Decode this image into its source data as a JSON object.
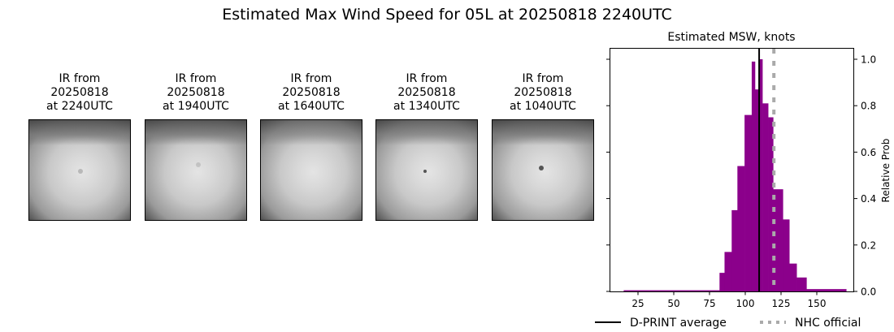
{
  "title": "Estimated Max Wind Speed for 05L at 20250818 2240UTC",
  "panels": [
    {
      "label": "IR from\n20250818\nat 2240UTC"
    },
    {
      "label": "IR from\n20250818\nat 1940UTC"
    },
    {
      "label": "IR from\n20250818\nat 1640UTC"
    },
    {
      "label": "IR from\n20250818\nat 1340UTC"
    },
    {
      "label": "IR from\n20250818\nat 1040UTC"
    }
  ],
  "chart_data": {
    "type": "bar",
    "title": "Estimated MSW, knots",
    "xlabel": "",
    "ylabel": "Relative Prob",
    "xlim": [
      5,
      175
    ],
    "ylim": [
      0,
      1.05
    ],
    "xticks": [
      25,
      50,
      75,
      100,
      125,
      150
    ],
    "yticks": [
      "0.0",
      "0.2",
      "0.4",
      "0.6",
      "0.8",
      "1.0"
    ],
    "bar_color": "#8b008b",
    "bins": [
      {
        "x0": 15,
        "x1": 82,
        "value": 0.005
      },
      {
        "x0": 82,
        "x1": 85.5,
        "value": 0.08
      },
      {
        "x0": 85.5,
        "x1": 90.5,
        "value": 0.17
      },
      {
        "x0": 90.5,
        "x1": 94.5,
        "value": 0.35
      },
      {
        "x0": 94.5,
        "x1": 99.5,
        "value": 0.54
      },
      {
        "x0": 99.5,
        "x1": 104.5,
        "value": 0.76
      },
      {
        "x0": 104.5,
        "x1": 106.8,
        "value": 0.99
      },
      {
        "x0": 106.8,
        "x1": 109.7,
        "value": 0.87
      },
      {
        "x0": 109.7,
        "x1": 112,
        "value": 1.0
      },
      {
        "x0": 112,
        "x1": 116,
        "value": 0.81
      },
      {
        "x0": 116,
        "x1": 119.5,
        "value": 0.75
      },
      {
        "x0": 119.5,
        "x1": 126.3,
        "value": 0.44
      },
      {
        "x0": 126.3,
        "x1": 130.8,
        "value": 0.31
      },
      {
        "x0": 130.8,
        "x1": 135.9,
        "value": 0.12
      },
      {
        "x0": 135.9,
        "x1": 142.8,
        "value": 0.06
      },
      {
        "x0": 142.8,
        "x1": 170.6,
        "value": 0.01
      }
    ],
    "lines": [
      {
        "name": "D-PRINT average",
        "x": 109.7,
        "color": "#000000",
        "style": "solid"
      },
      {
        "name": "NHC official",
        "x": 120,
        "color": "#aaaaaa",
        "style": "dotted"
      }
    ],
    "legend": [
      "D-PRINT average",
      "NHC official"
    ],
    "legend_position": "bottom",
    "grid": false
  }
}
